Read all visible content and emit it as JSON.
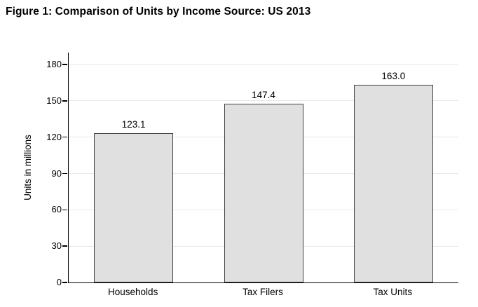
{
  "figure": {
    "title": "Figure 1: Comparison of Units by Income Source: US 2013"
  },
  "chart_data": {
    "type": "bar",
    "title": "Figure 1: Comparison of Units by Income Source: US 2013",
    "categories": [
      "Households",
      "Tax Filers",
      "Tax Units"
    ],
    "values": [
      123.1,
      147.4,
      163.0
    ],
    "value_labels": [
      "123.1",
      "147.4",
      "163.0"
    ],
    "xlabel": "",
    "ylabel": "Units in millions",
    "ylim": [
      0,
      180
    ],
    "yticks": [
      0,
      30,
      60,
      90,
      120,
      150,
      180
    ],
    "grid": "horizontal-only",
    "legend": "none",
    "colors": {
      "bar_fill": "#e0e0e0",
      "bar_border": "#404040",
      "grid_line": "#e8e8e8",
      "axis_line": "#000000",
      "text": "#000000",
      "background": "#ffffff"
    }
  }
}
